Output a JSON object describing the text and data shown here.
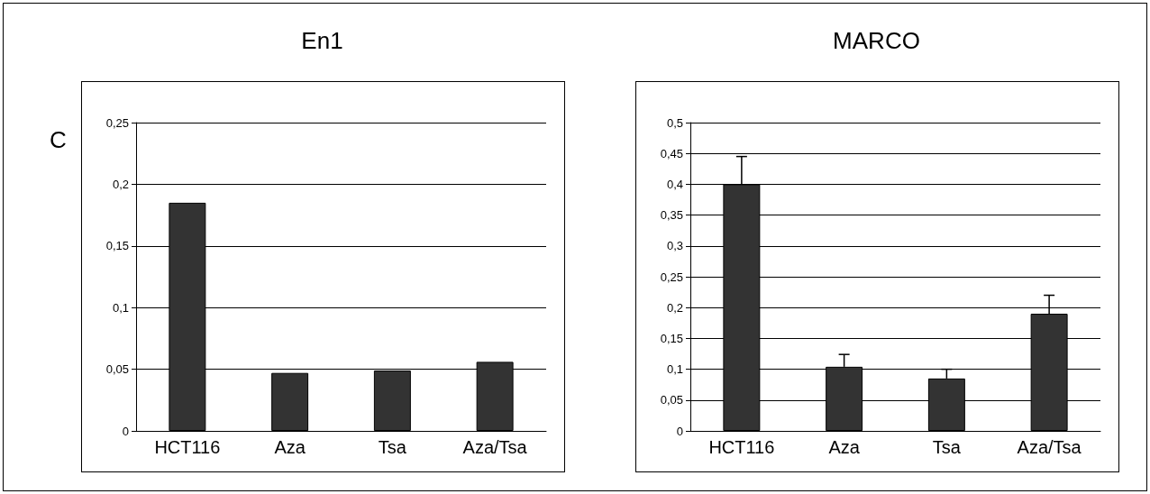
{
  "chart_data": [
    {
      "type": "bar",
      "title": "En1",
      "annotations": [
        "C"
      ],
      "categories": [
        "HCT116",
        "Aza",
        "Tsa",
        "Aza/Tsa"
      ],
      "values": [
        0.185,
        0.047,
        0.049,
        0.056
      ],
      "color": "#333333",
      "ylim": [
        0,
        0.25
      ],
      "yticks": [
        0,
        {
          "value": 0.05,
          "label": "0,05"
        },
        {
          "value": 0.1,
          "label": "0,1"
        },
        {
          "value": 0.15,
          "label": "0,15"
        },
        {
          "value": 0.2,
          "label": "0,2"
        },
        {
          "value": 0.25,
          "label": "0,25"
        }
      ],
      "grid": "y"
    },
    {
      "type": "bar",
      "title": "MARCO",
      "categories": [
        "HCT116",
        "Aza",
        "Tsa",
        "Aza/Tsa"
      ],
      "values": [
        0.4,
        0.104,
        0.085,
        0.19
      ],
      "errors": [
        [
          0.4,
          0.445
        ],
        [
          0.104,
          0.124
        ],
        [
          0.085,
          0.1
        ],
        [
          0.19,
          0.22
        ]
      ],
      "color": "#333333",
      "ylim": [
        0,
        0.5
      ],
      "yticks": [
        0,
        {
          "value": 0.05,
          "label": "0,05"
        },
        {
          "value": 0.1,
          "label": "0,1"
        },
        {
          "value": 0.15,
          "label": "0,15"
        },
        {
          "value": 0.2,
          "label": "0,2"
        },
        {
          "value": 0.25,
          "label": "0,25"
        },
        {
          "value": 0.3,
          "label": "0,3"
        },
        {
          "value": 0.35,
          "label": "0,35"
        },
        {
          "value": 0.4,
          "label": "0,4"
        },
        {
          "value": 0.45,
          "label": "0,45"
        },
        {
          "value": 0.5,
          "label": "0,5"
        }
      ],
      "grid": "y"
    }
  ]
}
